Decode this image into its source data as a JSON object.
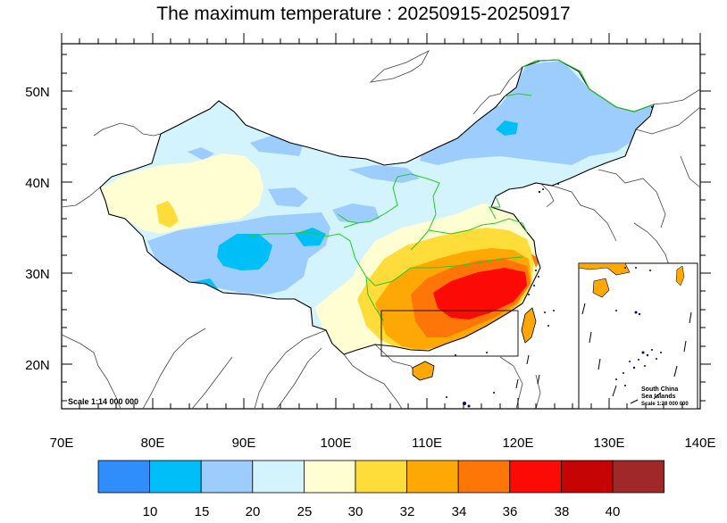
{
  "title": "The maximum temperature : 20250915-20250917",
  "map": {
    "x_ticks": [
      "70E",
      "80E",
      "90E",
      "100E",
      "110E",
      "120E",
      "130E",
      "140E"
    ],
    "y_ticks": [
      "50N",
      "40N",
      "30N",
      "20N"
    ],
    "scale_main": "Scale 1:14 000 000",
    "inset": {
      "title_line1": "South China",
      "title_line2": "Sea Islands",
      "scale": "Scale 1:28 000 000"
    }
  },
  "colorbar": {
    "labels": [
      "10",
      "15",
      "20",
      "25",
      "30",
      "32",
      "34",
      "36",
      "38",
      "40"
    ],
    "colors": [
      "#2f8dfc",
      "#00bff8",
      "#9dcdfc",
      "#d3f3fd",
      "#fefed2",
      "#fedc3a",
      "#fea805",
      "#fe7508",
      "#fc0a05",
      "#c70404",
      "#a02828"
    ]
  }
}
